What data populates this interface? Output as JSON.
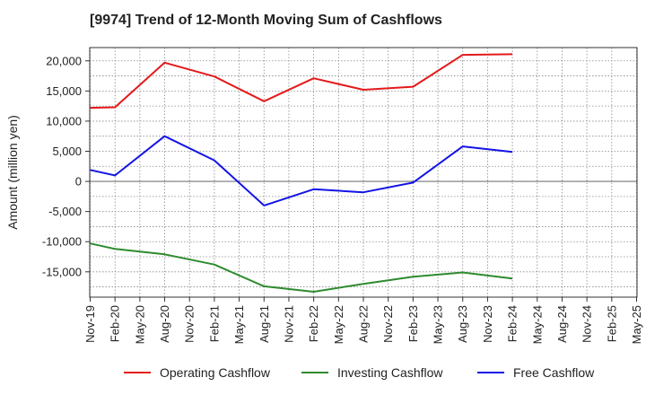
{
  "chart_data": {
    "type": "line",
    "title": "[9974]  Trend of 12-Month Moving Sum of Cashflows",
    "xlabel": "",
    "ylabel": "Amount (million yen)",
    "categories": [
      "Nov-19",
      "Feb-20",
      "May-20",
      "Aug-20",
      "Nov-20",
      "Feb-21",
      "May-21",
      "Aug-21",
      "Nov-21",
      "Feb-22",
      "May-22",
      "Aug-22",
      "Nov-22",
      "Feb-23",
      "May-23",
      "Aug-23",
      "Nov-23",
      "Feb-24",
      "May-24",
      "Aug-24",
      "Nov-24",
      "Feb-25",
      "May-25"
    ],
    "ylim": [
      -19200,
      22200
    ],
    "yticks": [
      20000,
      15000,
      10000,
      5000,
      0,
      -5000,
      -10000,
      -15000
    ],
    "ytick_labels": [
      "20,000",
      "15,000",
      "10,000",
      "5,000",
      "0",
      "-5,000",
      "-10,000",
      "-15,000"
    ],
    "grid": true,
    "legend_position": "bottom",
    "series": [
      {
        "name": "Operating Cashflow",
        "color": "#e31a1c",
        "values": [
          12200,
          12300,
          null,
          19700,
          null,
          17400,
          null,
          13300,
          null,
          17100,
          null,
          15200,
          null,
          15700,
          null,
          21000,
          null,
          21100,
          null,
          null,
          null,
          null,
          null
        ]
      },
      {
        "name": "Investing Cashflow",
        "color": "#2e8b2e",
        "values": [
          -10300,
          -11200,
          null,
          -12100,
          null,
          -13800,
          null,
          -17400,
          null,
          -18300,
          null,
          -17000,
          null,
          -15800,
          null,
          -15100,
          null,
          -16100,
          null,
          null,
          null,
          null,
          null
        ]
      },
      {
        "name": "Free Cashflow",
        "color": "#1414e6",
        "values": [
          1900,
          1000,
          null,
          7500,
          null,
          3500,
          null,
          -4000,
          null,
          -1300,
          null,
          -1800,
          null,
          -200,
          null,
          5800,
          null,
          4900,
          null,
          null,
          null,
          null,
          null
        ]
      }
    ]
  }
}
